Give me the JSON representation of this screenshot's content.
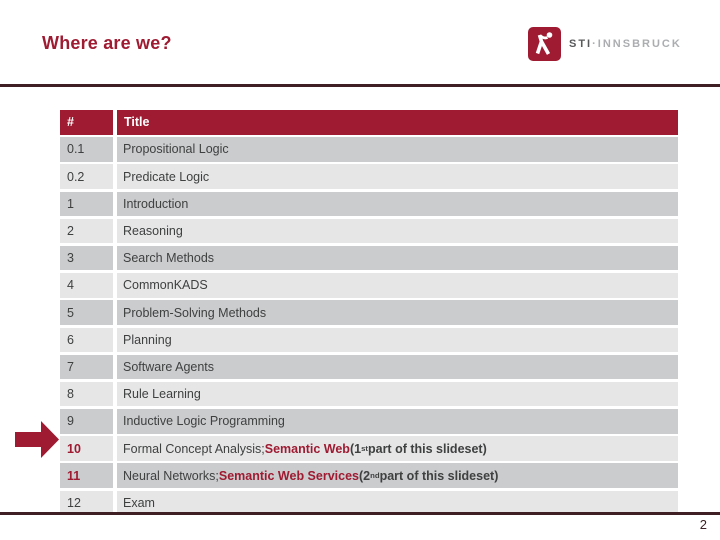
{
  "slide": {
    "title": "Where are we?",
    "page_number": "2"
  },
  "logo": {
    "icon": "sti-person-figure-icon",
    "brand": "STI",
    "separator": "·",
    "location": "INNSBRUCK"
  },
  "icons": {
    "current_topic_marker": "arrow-right-icon",
    "logo_figure": "sti-person-figure-icon"
  },
  "colors": {
    "accent_red": "#9E1B32",
    "rule_maroon": "#401F24",
    "row_dark": "#CBCCCE",
    "row_light": "#E6E6E7",
    "body_text": "#3F4040",
    "header_text": "#FFFFFF"
  },
  "table": {
    "columns": [
      "#",
      "Title"
    ],
    "rows": [
      {
        "num": "0.1",
        "highlight": false,
        "segments": [
          {
            "t": "Propositional Logic"
          }
        ]
      },
      {
        "num": "0.2",
        "highlight": false,
        "segments": [
          {
            "t": "Predicate Logic"
          }
        ]
      },
      {
        "num": "1",
        "highlight": false,
        "segments": [
          {
            "t": "Introduction"
          }
        ]
      },
      {
        "num": "2",
        "highlight": false,
        "segments": [
          {
            "t": "Reasoning"
          }
        ]
      },
      {
        "num": "3",
        "highlight": false,
        "segments": [
          {
            "t": "Search Methods"
          }
        ]
      },
      {
        "num": "4",
        "highlight": false,
        "segments": [
          {
            "t": "CommonKADS"
          }
        ]
      },
      {
        "num": "5",
        "highlight": false,
        "segments": [
          {
            "t": "Problem-Solving Methods"
          }
        ]
      },
      {
        "num": "6",
        "highlight": false,
        "segments": [
          {
            "t": "Planning"
          }
        ]
      },
      {
        "num": "7",
        "highlight": false,
        "segments": [
          {
            "t": "Software Agents"
          }
        ]
      },
      {
        "num": "8",
        "highlight": false,
        "segments": [
          {
            "t": "Rule Learning"
          }
        ]
      },
      {
        "num": "9",
        "highlight": false,
        "segments": [
          {
            "t": "Inductive Logic Programming"
          }
        ]
      },
      {
        "num": "10",
        "highlight": true,
        "segments": [
          {
            "t": "Formal Concept Analysis; "
          },
          {
            "t": "Semantic Web",
            "b": true,
            "r": true
          },
          {
            "t": " (1",
            "b": true
          },
          {
            "t": "st",
            "b": true,
            "s": true
          },
          {
            "t": " part of this slideset)",
            "b": true
          }
        ]
      },
      {
        "num": "11",
        "highlight": true,
        "segments": [
          {
            "t": "Neural Networks; "
          },
          {
            "t": "Semantic Web Services",
            "b": true,
            "r": true
          },
          {
            "t": " (2",
            "b": true
          },
          {
            "t": "nd",
            "b": true,
            "s": true
          },
          {
            "t": " part of this slideset)",
            "b": true
          }
        ]
      },
      {
        "num": "12",
        "highlight": false,
        "segments": [
          {
            "t": "Exam"
          }
        ]
      }
    ]
  }
}
